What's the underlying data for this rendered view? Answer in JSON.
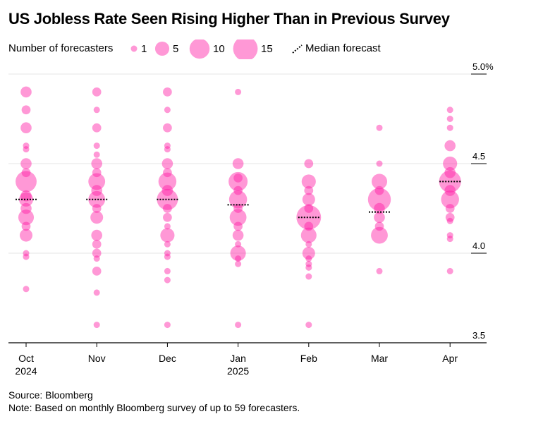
{
  "title": "US Jobless Rate Seen Rising Higher Than in Previous Survey",
  "legend": {
    "size_label": "Number of forecasters",
    "sizes": [
      {
        "label": "1",
        "value": 1
      },
      {
        "label": "5",
        "value": 5
      },
      {
        "label": "10",
        "value": 10
      },
      {
        "label": "15",
        "value": 15
      }
    ],
    "median_label": "Median forecast"
  },
  "colors": {
    "dot": "#ff1aa3",
    "axis": "#000000",
    "grid": "#e6e6e6"
  },
  "footer": {
    "source": "Source: Bloomberg",
    "note": "Note: Based on monthly Bloomberg survey of up to 59 forecasters."
  },
  "chart_data": {
    "type": "scatter",
    "encoding": "bubble size = number of forecasters; dotted line = median forecast",
    "y_axis": {
      "range": [
        3.5,
        5.0
      ],
      "ticks": [
        3.5,
        4.0,
        4.5,
        5.0
      ],
      "tick_labels": [
        "3.5",
        "4.0",
        "4.5",
        "5.0%"
      ]
    },
    "categories": [
      {
        "month": "Oct",
        "year": "2024"
      },
      {
        "month": "Nov",
        "year": ""
      },
      {
        "month": "Dec",
        "year": ""
      },
      {
        "month": "Jan",
        "year": "2025"
      },
      {
        "month": "Feb",
        "year": ""
      },
      {
        "month": "Mar",
        "year": ""
      },
      {
        "month": "Apr",
        "year": ""
      }
    ],
    "median": [
      4.3,
      4.3,
      4.3,
      4.27,
      4.2,
      4.23,
      4.4
    ],
    "series": [
      {
        "month": "Oct",
        "points": [
          {
            "y": 4.9,
            "n": 3
          },
          {
            "y": 4.8,
            "n": 2
          },
          {
            "y": 4.7,
            "n": 3
          },
          {
            "y": 4.6,
            "n": 1
          },
          {
            "y": 4.58,
            "n": 1
          },
          {
            "y": 4.5,
            "n": 3
          },
          {
            "y": 4.45,
            "n": 2
          },
          {
            "y": 4.4,
            "n": 11
          },
          {
            "y": 4.32,
            "n": 3
          },
          {
            "y": 4.3,
            "n": 5
          },
          {
            "y": 4.25,
            "n": 3
          },
          {
            "y": 4.2,
            "n": 6
          },
          {
            "y": 4.15,
            "n": 2
          },
          {
            "y": 4.1,
            "n": 4
          },
          {
            "y": 4.0,
            "n": 1
          },
          {
            "y": 3.98,
            "n": 1
          },
          {
            "y": 3.8,
            "n": 1
          }
        ]
      },
      {
        "month": "Nov",
        "points": [
          {
            "y": 4.9,
            "n": 2
          },
          {
            "y": 4.8,
            "n": 1
          },
          {
            "y": 4.7,
            "n": 2
          },
          {
            "y": 4.6,
            "n": 1
          },
          {
            "y": 4.55,
            "n": 1
          },
          {
            "y": 4.5,
            "n": 3
          },
          {
            "y": 4.45,
            "n": 2
          },
          {
            "y": 4.4,
            "n": 7
          },
          {
            "y": 4.35,
            "n": 3
          },
          {
            "y": 4.3,
            "n": 7
          },
          {
            "y": 4.25,
            "n": 2
          },
          {
            "y": 4.2,
            "n": 4
          },
          {
            "y": 4.1,
            "n": 3
          },
          {
            "y": 4.05,
            "n": 2
          },
          {
            "y": 4.0,
            "n": 2
          },
          {
            "y": 3.97,
            "n": 1
          },
          {
            "y": 3.9,
            "n": 2
          },
          {
            "y": 3.78,
            "n": 1
          },
          {
            "y": 3.6,
            "n": 1
          }
        ]
      },
      {
        "month": "Dec",
        "points": [
          {
            "y": 4.9,
            "n": 2
          },
          {
            "y": 4.8,
            "n": 1
          },
          {
            "y": 4.7,
            "n": 2
          },
          {
            "y": 4.6,
            "n": 1
          },
          {
            "y": 4.58,
            "n": 1
          },
          {
            "y": 4.5,
            "n": 3
          },
          {
            "y": 4.45,
            "n": 2
          },
          {
            "y": 4.4,
            "n": 8
          },
          {
            "y": 4.35,
            "n": 3
          },
          {
            "y": 4.3,
            "n": 11
          },
          {
            "y": 4.25,
            "n": 2
          },
          {
            "y": 4.2,
            "n": 2
          },
          {
            "y": 4.15,
            "n": 1
          },
          {
            "y": 4.1,
            "n": 5
          },
          {
            "y": 4.05,
            "n": 1
          },
          {
            "y": 4.0,
            "n": 1
          },
          {
            "y": 3.98,
            "n": 1
          },
          {
            "y": 3.9,
            "n": 1
          },
          {
            "y": 3.85,
            "n": 1
          },
          {
            "y": 3.6,
            "n": 1
          }
        ]
      },
      {
        "month": "Jan",
        "points": [
          {
            "y": 4.9,
            "n": 1
          },
          {
            "y": 4.5,
            "n": 3
          },
          {
            "y": 4.42,
            "n": 2
          },
          {
            "y": 4.4,
            "n": 9
          },
          {
            "y": 4.35,
            "n": 2
          },
          {
            "y": 4.3,
            "n": 8
          },
          {
            "y": 4.25,
            "n": 2
          },
          {
            "y": 4.2,
            "n": 7
          },
          {
            "y": 4.15,
            "n": 2
          },
          {
            "y": 4.1,
            "n": 3
          },
          {
            "y": 4.05,
            "n": 1
          },
          {
            "y": 4.0,
            "n": 6
          },
          {
            "y": 3.97,
            "n": 1
          },
          {
            "y": 3.94,
            "n": 1
          },
          {
            "y": 3.6,
            "n": 1
          }
        ]
      },
      {
        "month": "Feb",
        "points": [
          {
            "y": 4.5,
            "n": 2
          },
          {
            "y": 4.4,
            "n": 5
          },
          {
            "y": 4.35,
            "n": 2
          },
          {
            "y": 4.3,
            "n": 4
          },
          {
            "y": 4.25,
            "n": 2
          },
          {
            "y": 4.2,
            "n": 15
          },
          {
            "y": 4.15,
            "n": 2
          },
          {
            "y": 4.1,
            "n": 6
          },
          {
            "y": 4.05,
            "n": 1
          },
          {
            "y": 4.0,
            "n": 4
          },
          {
            "y": 3.97,
            "n": 1
          },
          {
            "y": 3.94,
            "n": 1
          },
          {
            "y": 3.92,
            "n": 1
          },
          {
            "y": 3.87,
            "n": 1
          },
          {
            "y": 3.6,
            "n": 1
          }
        ]
      },
      {
        "month": "Mar",
        "points": [
          {
            "y": 4.7,
            "n": 1
          },
          {
            "y": 4.5,
            "n": 1
          },
          {
            "y": 4.4,
            "n": 6
          },
          {
            "y": 4.35,
            "n": 2
          },
          {
            "y": 4.3,
            "n": 13
          },
          {
            "y": 4.25,
            "n": 3
          },
          {
            "y": 4.2,
            "n": 3
          },
          {
            "y": 4.15,
            "n": 2
          },
          {
            "y": 4.1,
            "n": 7
          },
          {
            "y": 3.9,
            "n": 1
          }
        ]
      },
      {
        "month": "Apr",
        "points": [
          {
            "y": 4.8,
            "n": 1
          },
          {
            "y": 4.75,
            "n": 1
          },
          {
            "y": 4.7,
            "n": 1
          },
          {
            "y": 4.6,
            "n": 3
          },
          {
            "y": 4.5,
            "n": 5
          },
          {
            "y": 4.45,
            "n": 3
          },
          {
            "y": 4.4,
            "n": 12
          },
          {
            "y": 4.35,
            "n": 3
          },
          {
            "y": 4.3,
            "n": 8
          },
          {
            "y": 4.25,
            "n": 2
          },
          {
            "y": 4.2,
            "n": 2
          },
          {
            "y": 4.18,
            "n": 1
          },
          {
            "y": 4.1,
            "n": 1
          },
          {
            "y": 4.08,
            "n": 1
          },
          {
            "y": 3.9,
            "n": 1
          }
        ]
      }
    ]
  }
}
